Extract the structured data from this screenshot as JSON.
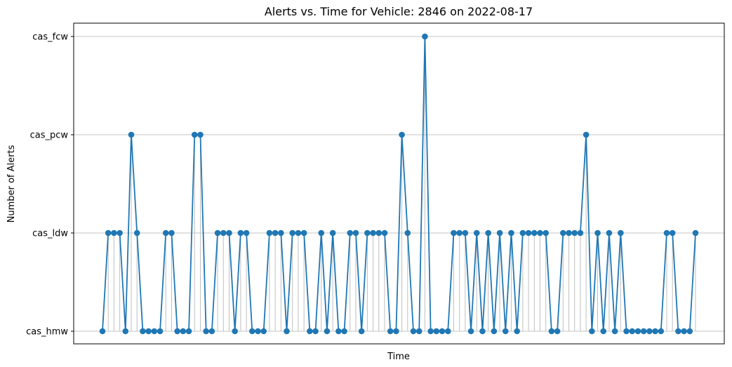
{
  "chart_data": {
    "type": "line",
    "title": "Alerts vs. Time for Vehicle: 2846 on 2022-08-17",
    "xlabel": "Time",
    "ylabel": "Number of Alerts",
    "y_categories": [
      "cas_hmw",
      "cas_ldw",
      "cas_pcw",
      "cas_fcw"
    ],
    "x_tick_labels_shown": false,
    "grid": "horizontal",
    "series": [
      {
        "color": "#1f77b4",
        "marker": "circle",
        "stem_color": "#bfbfbf",
        "values": [
          "cas_hmw",
          "cas_ldw",
          "cas_ldw",
          "cas_ldw",
          "cas_hmw",
          "cas_pcw",
          "cas_ldw",
          "cas_hmw",
          "cas_hmw",
          "cas_hmw",
          "cas_hmw",
          "cas_ldw",
          "cas_ldw",
          "cas_hmw",
          "cas_hmw",
          "cas_hmw",
          "cas_pcw",
          "cas_pcw",
          "cas_hmw",
          "cas_hmw",
          "cas_ldw",
          "cas_ldw",
          "cas_ldw",
          "cas_hmw",
          "cas_ldw",
          "cas_ldw",
          "cas_hmw",
          "cas_hmw",
          "cas_hmw",
          "cas_ldw",
          "cas_ldw",
          "cas_ldw",
          "cas_hmw",
          "cas_ldw",
          "cas_ldw",
          "cas_ldw",
          "cas_hmw",
          "cas_hmw",
          "cas_ldw",
          "cas_hmw",
          "cas_ldw",
          "cas_hmw",
          "cas_hmw",
          "cas_ldw",
          "cas_ldw",
          "cas_hmw",
          "cas_ldw",
          "cas_ldw",
          "cas_ldw",
          "cas_ldw",
          "cas_hmw",
          "cas_hmw",
          "cas_pcw",
          "cas_ldw",
          "cas_hmw",
          "cas_hmw",
          "cas_fcw",
          "cas_hmw",
          "cas_hmw",
          "cas_hmw",
          "cas_hmw",
          "cas_ldw",
          "cas_ldw",
          "cas_ldw",
          "cas_hmw",
          "cas_ldw",
          "cas_hmw",
          "cas_ldw",
          "cas_hmw",
          "cas_ldw",
          "cas_hmw",
          "cas_ldw",
          "cas_hmw",
          "cas_ldw",
          "cas_ldw",
          "cas_ldw",
          "cas_ldw",
          "cas_ldw",
          "cas_hmw",
          "cas_hmw",
          "cas_ldw",
          "cas_ldw",
          "cas_ldw",
          "cas_ldw",
          "cas_pcw",
          "cas_hmw",
          "cas_ldw",
          "cas_hmw",
          "cas_ldw",
          "cas_hmw",
          "cas_ldw",
          "cas_hmw",
          "cas_hmw",
          "cas_hmw",
          "cas_hmw",
          "cas_hmw",
          "cas_hmw",
          "cas_hmw",
          "cas_ldw",
          "cas_ldw",
          "cas_hmw",
          "cas_hmw",
          "cas_hmw",
          "cas_ldw"
        ]
      }
    ]
  }
}
